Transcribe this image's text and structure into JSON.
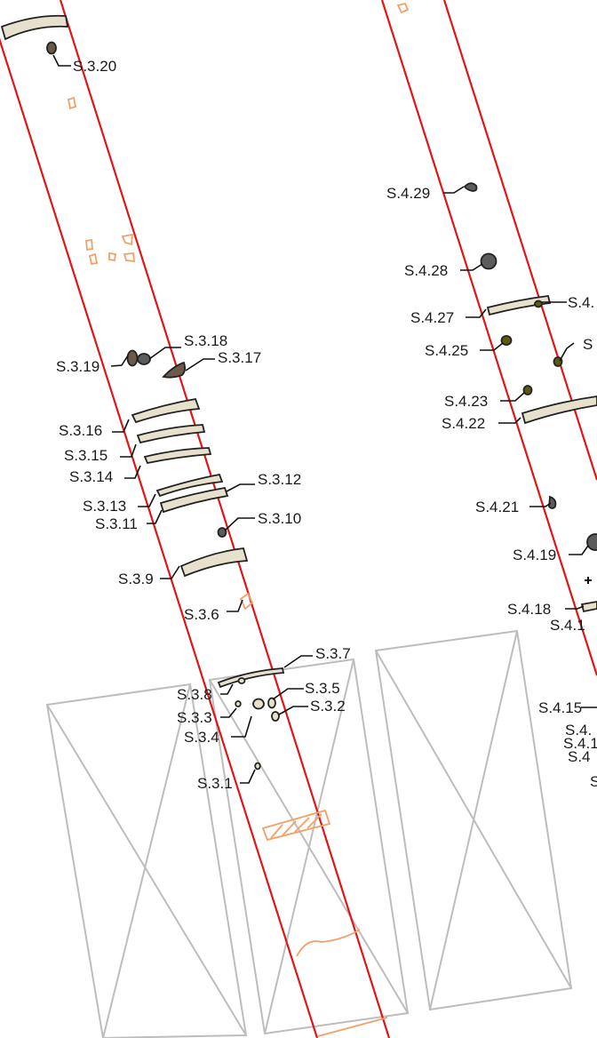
{
  "labels": {
    "s3_20": "S.3.20",
    "s3_19": "S.3.19",
    "s3_18": "S.3.18",
    "s3_17": "S.3.17",
    "s3_16": "S.3.16",
    "s3_15": "S.3.15",
    "s3_14": "S.3.14",
    "s3_13": "S.3.13",
    "s3_12": "S.3.12",
    "s3_11": "S.3.11",
    "s3_10": "S.3.10",
    "s3_9": "S.3.9",
    "s3_6": "S.3.6",
    "s3_7": "S.3.7",
    "s3_8": "S.3.8",
    "s3_5": "S.3.5",
    "s3_3": "S.3.3",
    "s3_2": "S.3.2",
    "s3_4": "S.3.4",
    "s3_1": "S.3.1",
    "s4_29": "S.4.29",
    "s4_28": "S.4.28",
    "s4_27": "S.4.27",
    "s4_26": "S.4.",
    "s4_25": "S.4.25",
    "s4_24": "S",
    "s4_23": "S.4.23",
    "s4_22": "S.4.22",
    "s4_21": "S.4.21",
    "s4_19": "S.4.19",
    "s4_18": "S.4.18",
    "s4_17": "S.4.1",
    "s4_15": "S.4.15",
    "s4_14": "S.4.",
    "s4_13": "S.4.1",
    "s4_12": "S.4",
    "s4_11": "S"
  },
  "colors": {
    "trench": "#e01616",
    "frame": "#bdbdbd",
    "orange": "#f3a066",
    "layer_fill": "#e6e0cc",
    "stone_dark": "#5c5c5c",
    "stone_brown": "#6b5a4a",
    "stone_olive": "#5e5a10"
  }
}
